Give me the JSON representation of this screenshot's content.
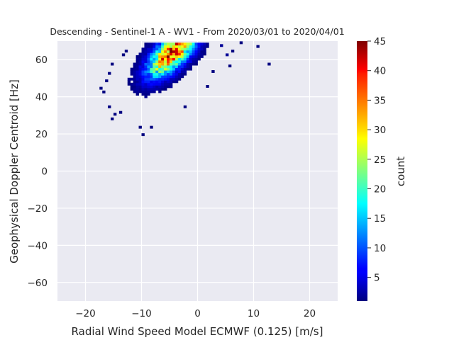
{
  "chart_data": {
    "type": "heatmap",
    "title": "Descending - Sentinel-1 A - WV1 - From 2020/03/01 to 2020/04/01",
    "xlabel": "Radial Wind Speed Model ECMWF (0.125) [m/s]",
    "ylabel": "Geophysical Doppler Centroid [Hz]",
    "xlim": [
      -25,
      25
    ],
    "ylim": [
      -70,
      70
    ],
    "xticks": [
      -20,
      -10,
      0,
      10,
      20
    ],
    "yticks": [
      -60,
      -40,
      -20,
      0,
      20,
      40,
      60
    ],
    "grid": true,
    "colorbar": {
      "label": "count",
      "colormap": "jet",
      "range": [
        1,
        45
      ],
      "ticks": [
        5,
        10,
        15,
        20,
        25,
        30,
        35,
        40,
        45
      ]
    },
    "bin_size": {
      "x": 0.5,
      "y": 1.35
    },
    "density_peak": {
      "x": -5.5,
      "y": 63,
      "count": 45
    },
    "isolated_bins": [
      {
        "x": -10,
        "y": 19,
        "count": 1
      },
      {
        "x": -10.5,
        "y": 23,
        "count": 1
      },
      {
        "x": -8.5,
        "y": 23,
        "count": 1
      },
      {
        "x": -15.5,
        "y": 27.5,
        "count": 1
      },
      {
        "x": -15,
        "y": 30,
        "count": 1
      },
      {
        "x": -14,
        "y": 31,
        "count": 1
      },
      {
        "x": -16,
        "y": 34,
        "count": 1
      },
      {
        "x": -17,
        "y": 42,
        "count": 1
      },
      {
        "x": -17.5,
        "y": 44,
        "count": 1
      },
      {
        "x": -16.5,
        "y": 48,
        "count": 1
      },
      {
        "x": -16,
        "y": 52,
        "count": 1
      },
      {
        "x": -15.5,
        "y": 57,
        "count": 1
      },
      {
        "x": -13.5,
        "y": 62,
        "count": 1
      },
      {
        "x": -13,
        "y": 64,
        "count": 1
      },
      {
        "x": 7.5,
        "y": 68.5,
        "count": 1
      },
      {
        "x": 10.5,
        "y": 66.5,
        "count": 1
      },
      {
        "x": 12.5,
        "y": 57,
        "count": 1
      },
      {
        "x": 6,
        "y": 64,
        "count": 1
      },
      {
        "x": 5.5,
        "y": 56,
        "count": 1
      },
      {
        "x": 5,
        "y": 62,
        "count": 2
      },
      {
        "x": 2.5,
        "y": 53,
        "count": 1
      },
      {
        "x": 1.5,
        "y": 45,
        "count": 1
      },
      {
        "x": -2.5,
        "y": 34,
        "count": 1
      },
      {
        "x": 4,
        "y": 67,
        "count": 2
      }
    ]
  }
}
